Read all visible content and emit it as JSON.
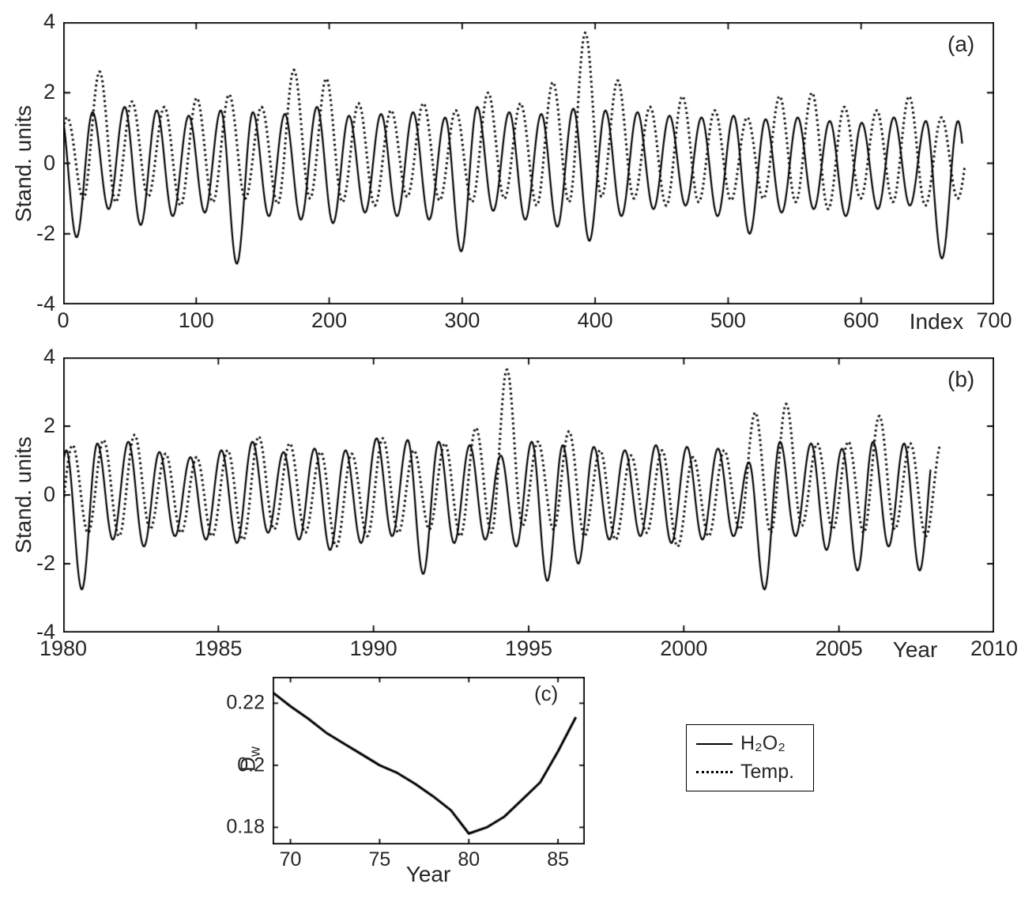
{
  "colors": {
    "line": "#000000",
    "text": "#262626",
    "background": "#ffffff"
  },
  "legend": {
    "entries": [
      {
        "label": "H₂O₂",
        "style": "solid"
      },
      {
        "label": "Temp.",
        "style": "dotted"
      }
    ]
  },
  "chart_data": [
    {
      "id": "a",
      "type": "line",
      "panel_label": "(a)",
      "xlabel": "Index",
      "ylabel": "Stand. units",
      "xlim": [
        0,
        700
      ],
      "ylim": [
        -4,
        4
      ],
      "xtick_values": [
        0,
        100,
        200,
        300,
        400,
        500,
        600,
        700
      ],
      "xtick_labels": [
        "0",
        "100",
        "200",
        "300",
        "400",
        "500",
        "600",
        "700"
      ],
      "ytick_values": [
        -4,
        -2,
        0,
        2,
        4
      ],
      "ytick_labels": [
        "-4",
        "-2",
        "0",
        "2",
        "4"
      ],
      "grid": false,
      "legend_position": "below-panel-b",
      "series": [
        {
          "name": "H₂O₂",
          "style": "solid",
          "synth": {
            "period": 24.1,
            "phase": -2,
            "x_start": 0,
            "x_end": 676,
            "peaks": [
              1.45,
              1.45,
              1.6,
              1.5,
              1.35,
              1.5,
              1.45,
              1.4,
              1.6,
              1.35,
              1.4,
              1.45,
              1.3,
              1.6,
              1.45,
              1.4,
              1.55,
              1.5,
              1.45,
              1.35,
              1.3,
              1.35,
              1.25,
              1.3,
              1.2,
              1.15,
              1.3,
              1.2
            ],
            "troughs": [
              -2.1,
              -1.3,
              -1.75,
              -1.5,
              -1.4,
              -2.85,
              -1.5,
              -1.6,
              -1.7,
              -1.4,
              -1.5,
              -1.6,
              -2.5,
              -1.35,
              -1.6,
              -1.8,
              -2.2,
              -1.5,
              -1.3,
              -1.2,
              -1.5,
              -2.0,
              -1.4,
              -1.3,
              -1.5,
              -1.3,
              -1.2,
              -2.7
            ]
          }
        },
        {
          "name": "Temp.",
          "style": "dotted",
          "synth": {
            "period": 24.35,
            "phase": 3,
            "x_start": 0,
            "x_end": 678,
            "peaks": [
              1.3,
              2.6,
              1.75,
              1.6,
              1.85,
              1.95,
              1.6,
              2.65,
              2.4,
              1.7,
              1.5,
              1.7,
              1.5,
              2.0,
              1.7,
              2.3,
              3.7,
              2.35,
              1.6,
              1.9,
              1.5,
              1.3,
              1.9,
              2.0,
              1.6,
              1.5,
              1.9,
              1.3
            ],
            "troughs": [
              -1.0,
              -1.1,
              -0.95,
              -1.2,
              -1.1,
              -1.0,
              -1.15,
              -1.0,
              -1.1,
              -1.2,
              -0.95,
              -1.05,
              -1.1,
              -1.0,
              -1.2,
              -1.1,
              -0.95,
              -1.0,
              -1.2,
              -1.1,
              -1.05,
              -1.0,
              -1.1,
              -1.3,
              -1.0,
              -1.1,
              -1.2,
              -1.0
            ]
          }
        }
      ]
    },
    {
      "id": "b",
      "type": "line",
      "panel_label": "(b)",
      "xlabel": "Year",
      "ylabel": "Stand. units",
      "xlim": [
        1980,
        2010
      ],
      "ylim": [
        -4,
        4
      ],
      "xtick_values": [
        1980,
        1985,
        1990,
        1995,
        2000,
        2005,
        2010
      ],
      "xtick_labels": [
        "1980",
        "1985",
        "1990",
        "1995",
        "2000",
        "2005",
        "2010"
      ],
      "ytick_values": [
        -4,
        -2,
        0,
        2,
        4
      ],
      "ytick_labels": [
        "-4",
        "-2",
        "0",
        "2",
        "4"
      ],
      "grid": false,
      "series": [
        {
          "name": "H₂O₂",
          "style": "solid",
          "synth": {
            "period": 1,
            "phase": 0.1,
            "x_start": 1980,
            "x_end": 2007.95,
            "peaks": [
              1.3,
              1.5,
              1.55,
              1.25,
              1.1,
              1.3,
              1.55,
              1.25,
              1.35,
              1.3,
              1.65,
              1.6,
              1.55,
              1.45,
              1.15,
              1.55,
              1.45,
              1.4,
              1.3,
              1.45,
              1.4,
              1.35,
              0.95,
              1.55,
              1.5,
              1.35,
              1.55,
              1.5
            ],
            "troughs": [
              -2.75,
              -1.3,
              -1.5,
              -1.2,
              -1.3,
              -1.4,
              -1.1,
              -1.3,
              -1.6,
              -1.4,
              -1.2,
              -2.3,
              -1.4,
              -1.3,
              -1.5,
              -2.5,
              -2.0,
              -1.3,
              -1.2,
              -1.4,
              -1.3,
              -1.2,
              -2.75,
              -1.2,
              -1.6,
              -2.2,
              -1.5,
              -2.2
            ]
          }
        },
        {
          "name": "Temp.",
          "style": "dotted",
          "synth": {
            "period": 1,
            "phase": 0.3,
            "x_start": 1980,
            "x_end": 2008.25,
            "peaks": [
              1.45,
              1.6,
              1.75,
              1.2,
              1.1,
              1.3,
              1.7,
              1.5,
              1.25,
              1.2,
              1.65,
              1.3,
              1.5,
              1.95,
              3.65,
              1.55,
              1.85,
              1.3,
              1.15,
              1.3,
              1.1,
              1.3,
              2.4,
              2.65,
              1.5,
              1.55,
              2.3,
              1.5
            ],
            "troughs": [
              -1.1,
              -1.2,
              -1.0,
              -1.1,
              -1.2,
              -1.3,
              -1.0,
              -1.1,
              -1.5,
              -1.2,
              -1.1,
              -1.0,
              -1.2,
              -1.1,
              -0.9,
              -1.0,
              -1.2,
              -1.3,
              -1.1,
              -1.5,
              -1.2,
              -1.0,
              -1.1,
              -0.9,
              -1.0,
              -1.1,
              -1.0,
              -1.2
            ]
          }
        }
      ]
    },
    {
      "id": "c",
      "type": "line",
      "panel_label": "(c)",
      "xlabel": "Year",
      "ylabel_base": "D",
      "ylabel_sub": "w",
      "xlim": [
        69,
        86.5
      ],
      "ylim": [
        0.1745,
        0.2285
      ],
      "xtick_values": [
        70,
        75,
        80,
        85
      ],
      "xtick_labels": [
        "70",
        "75",
        "80",
        "85"
      ],
      "ytick_values": [
        0.18,
        0.2,
        0.22
      ],
      "ytick_labels": [
        "0.18",
        "0.2",
        "0.22"
      ],
      "grid": false,
      "series": [
        {
          "name": "Dw",
          "style": "solid",
          "x": [
            69,
            70,
            71,
            72,
            73,
            74,
            75,
            76,
            77,
            78,
            79,
            80,
            81,
            82,
            83,
            84,
            85,
            86
          ],
          "y": [
            0.2235,
            0.219,
            0.215,
            0.2105,
            0.207,
            0.2035,
            0.2,
            0.1975,
            0.194,
            0.19,
            0.1855,
            0.178,
            0.18,
            0.1835,
            0.189,
            0.1945,
            0.2045,
            0.2155
          ]
        }
      ]
    }
  ]
}
